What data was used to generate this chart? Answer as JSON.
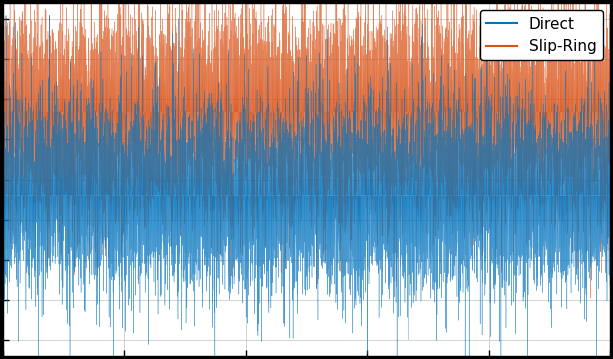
{
  "title": "",
  "xlabel": "",
  "ylabel": "",
  "legend_entries": [
    "Direct",
    "Slip-Ring"
  ],
  "line_colors": [
    "#0072BD",
    "#D95319"
  ],
  "background_color": "#000000",
  "axes_background": "#ffffff",
  "axes_edge_color": "#000000",
  "grid_color": "#c0c0c0",
  "legend_fontsize": 11,
  "direct_mean": -0.1,
  "direct_std": 0.28,
  "slipring_mean": 0.42,
  "slipring_std": 0.3,
  "n_samples": 10000,
  "seed": 42,
  "ylim": [
    -1.1,
    1.1
  ],
  "figsize": [
    6.13,
    3.59
  ],
  "dpi": 100
}
